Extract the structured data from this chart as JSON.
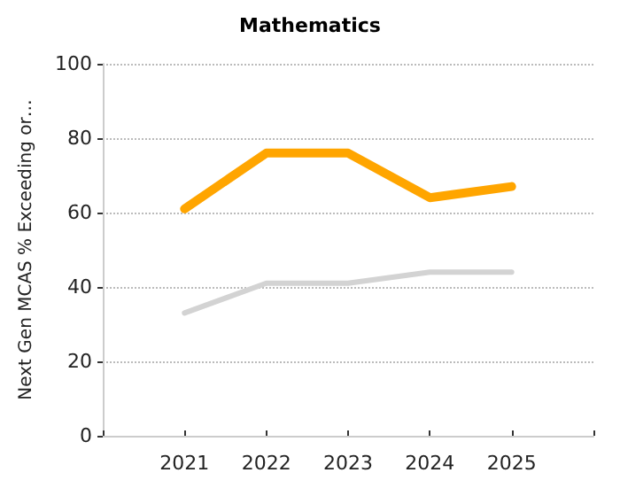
{
  "chart_data": {
    "type": "line",
    "title": "Mathematics",
    "ylabel": "Next Gen MCAS % Exceeding or…",
    "x": [
      2021,
      2022,
      2023,
      2024,
      2025
    ],
    "series": [
      {
        "color": "#ffa500",
        "values": [
          61,
          76,
          76,
          64,
          67
        ]
      },
      {
        "color": "#d3d3d3",
        "values": [
          33,
          41,
          41,
          44,
          44
        ]
      }
    ],
    "xlim": [
      2020,
      2026
    ],
    "xticks": [
      {
        "value": 2020,
        "label": null
      },
      2021,
      2022,
      2023,
      2024,
      2025,
      {
        "value": 2026,
        "label": null
      }
    ],
    "ylim": [
      0,
      100
    ],
    "yticks": [
      0,
      20,
      40,
      60,
      80,
      100
    ],
    "grid": "y",
    "marker": "none",
    "line_style": "solid"
  }
}
